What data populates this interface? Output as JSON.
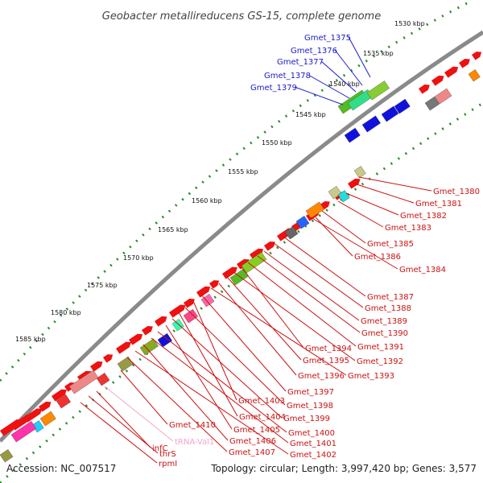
{
  "title": "Geobacter metallireducens GS-15, complete genome",
  "accession_text": "Accession: NC_007517",
  "summary_text": "Topology: circular; Length: 3,997,420 bp; Genes: 3,577",
  "tick_labels": [
    "1530 kbp",
    "1535 kbp",
    "1540 kbp",
    "1545 kbp",
    "1550 kbp",
    "1555 kbp",
    "1560 kbp",
    "1565 kbp",
    "1570 kbp",
    "1575 kbp",
    "1580 kbp",
    "1585 kbp"
  ],
  "gene_labels": {
    "blue": [
      "Gmet_1375",
      "Gmet_1376",
      "Gmet_1377",
      "Gmet_1378",
      "Gmet_1379"
    ],
    "red_right": [
      "Gmet_1380",
      "Gmet_1381",
      "Gmet_1382",
      "Gmet_1383",
      "Gmet_1385",
      "Gmet_1386",
      "Gmet_1384",
      "Gmet_1387",
      "Gmet_1388",
      "Gmet_1389",
      "Gmet_1390",
      "Gmet_1391",
      "Gmet_1394",
      "Gmet_1392",
      "Gmet_1395",
      "Gmet_1396",
      "Gmet_1393",
      "Gmet_1397",
      "Gmet_1403",
      "Gmet_1398",
      "Gmet_1404",
      "Gmet_1399",
      "Gmet_1405",
      "Gmet_1400",
      "Gmet_1401",
      "Gmet_1406",
      "Gmet_1402",
      "Gmet_1407"
    ],
    "bottom": [
      "Gmet_1410",
      "tRNA-Val1",
      "infC",
      "thrS",
      "rpmI"
    ]
  },
  "colors": {
    "forward_gene": "#ee1111",
    "blue_gene": "#1111dd",
    "green_gene": "#55bb22",
    "backbone": "#888888",
    "tick": "#2a8a2a",
    "trna": "#f2a6cc",
    "blue_label": "#1a1acc",
    "red_label": "#cc1111"
  }
}
